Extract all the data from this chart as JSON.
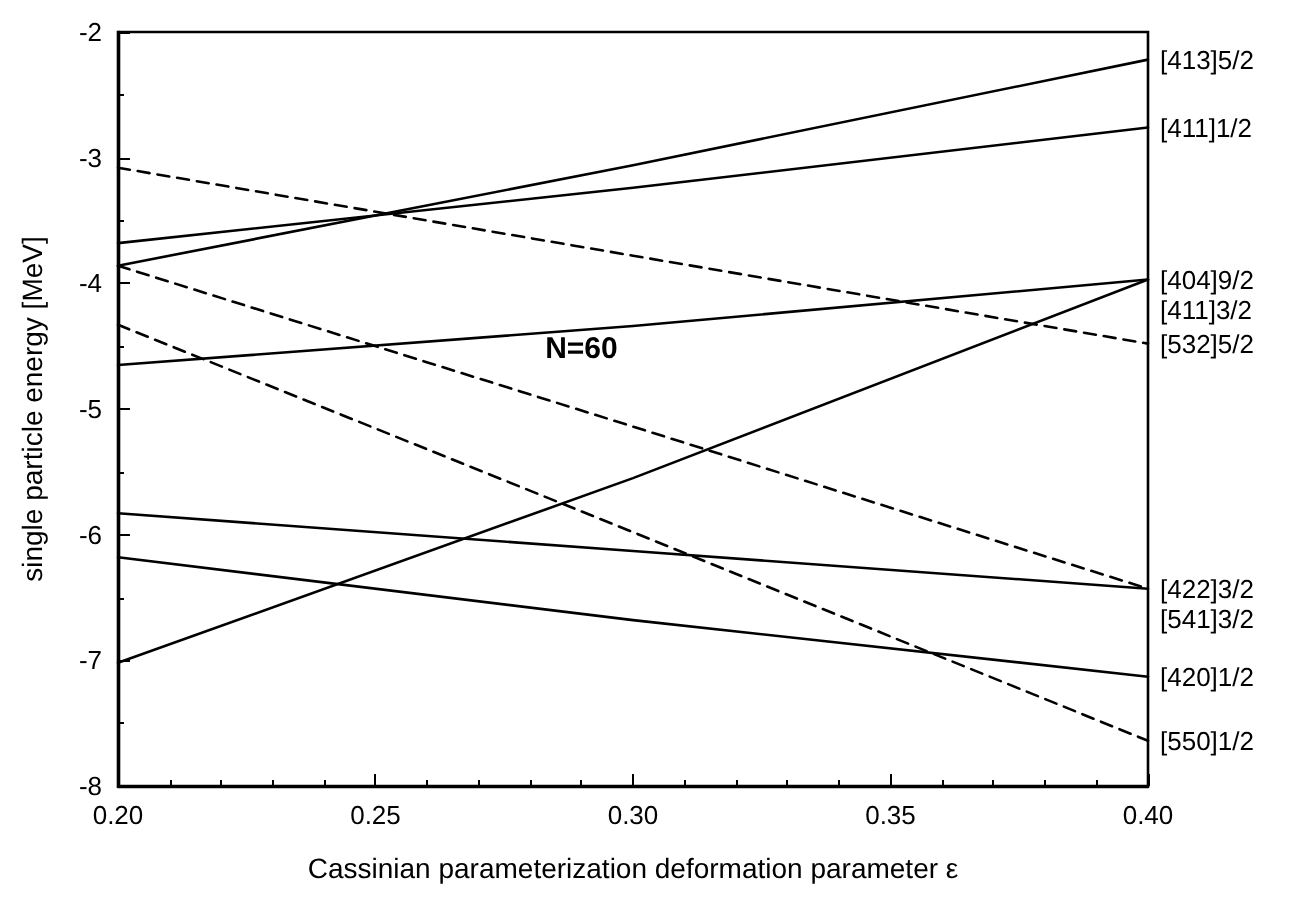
{
  "chart_data": {
    "type": "line",
    "xlabel": "Cassinian parameterization deformation parameter ε",
    "ylabel": "single particle energy [MeV]",
    "annotations": [
      "N=60"
    ],
    "xlim": [
      0.2,
      0.4
    ],
    "xticks": [
      {
        "value": 0.2,
        "label": "0.20"
      },
      {
        "value": 0.25,
        "label": "0.25"
      },
      {
        "value": 0.3,
        "label": "0.30"
      },
      {
        "value": 0.35,
        "label": "0.35"
      },
      {
        "value": 0.4,
        "label": "0.40"
      }
    ],
    "ylim": [
      -8,
      -2
    ],
    "yticks": [
      -8,
      -7,
      -6,
      -5,
      -4,
      -3,
      -2
    ],
    "grid": false,
    "legend": false,
    "marker": "none",
    "series": [
      {
        "name": "[413]5/2",
        "color": "#000000",
        "line_style": "solid",
        "x": [
          0.2,
          0.3,
          0.4
        ],
        "values": [
          -3.86,
          -3.06,
          -2.22
        ]
      },
      {
        "name": "[411]1/2",
        "color": "#000000",
        "line_style": "solid",
        "x": [
          0.2,
          0.3,
          0.4
        ],
        "values": [
          -3.68,
          -3.24,
          -2.76
        ]
      },
      {
        "name": "[404]9/2",
        "color": "#000000",
        "line_style": "solid",
        "x": [
          0.2,
          0.3,
          0.4
        ],
        "values": [
          -4.65,
          -4.34,
          -3.97
        ]
      },
      {
        "name": "[411]3/2",
        "color": "#000000",
        "line_style": "solid",
        "x": [
          0.2,
          0.3,
          0.4
        ],
        "values": [
          -7.02,
          -5.55,
          -3.97
        ]
      },
      {
        "name": "[532]5/2",
        "color": "#000000",
        "line_style": "dashed",
        "x": [
          0.2,
          0.3,
          0.4
        ],
        "values": [
          -3.08,
          -3.78,
          -4.48
        ]
      },
      {
        "name": "[422]3/2",
        "color": "#000000",
        "line_style": "solid",
        "x": [
          0.2,
          0.3,
          0.4
        ],
        "values": [
          -5.83,
          -6.13,
          -6.43
        ]
      },
      {
        "name": "[541]3/2",
        "color": "#000000",
        "line_style": "dashed",
        "x": [
          0.2,
          0.3,
          0.4
        ],
        "values": [
          -3.86,
          -5.14,
          -6.43
        ]
      },
      {
        "name": "[420]1/2",
        "color": "#000000",
        "line_style": "solid",
        "x": [
          0.2,
          0.3,
          0.4
        ],
        "values": [
          -6.18,
          -6.68,
          -7.13
        ]
      },
      {
        "name": "[550]1/2",
        "color": "#000000",
        "line_style": "dashed",
        "x": [
          0.2,
          0.3,
          0.4
        ],
        "values": [
          -4.33,
          -5.98,
          -7.64
        ]
      }
    ]
  }
}
